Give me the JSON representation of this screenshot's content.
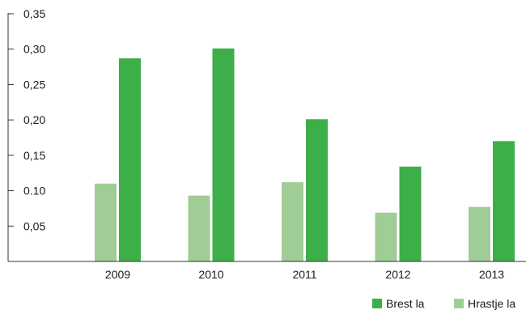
{
  "chart_data": {
    "type": "bar",
    "title": "",
    "xlabel": "",
    "ylabel": "",
    "categories": [
      "2009",
      "2010",
      "2011",
      "2012",
      "2013"
    ],
    "series": [
      {
        "name": "Hrastje la",
        "color": "#9fcd95",
        "values": [
          0.11,
          0.093,
          0.112,
          0.069,
          0.077
        ]
      },
      {
        "name": "Brest la",
        "color": "#3daf48",
        "values": [
          0.287,
          0.301,
          0.201,
          0.134,
          0.17
        ]
      }
    ],
    "ylim": [
      0,
      0.35
    ],
    "yticks": [
      0.05,
      0.1,
      0.15,
      0.2,
      0.25,
      0.3,
      0.35
    ],
    "ytick_labels": [
      "0,05",
      "0.10",
      "0,15",
      "0,20",
      "0,25",
      "0,30",
      "0,35"
    ],
    "grid": false,
    "legend_position": "bottom-right",
    "legend_order": [
      "Brest la",
      "Hrastje la"
    ]
  }
}
